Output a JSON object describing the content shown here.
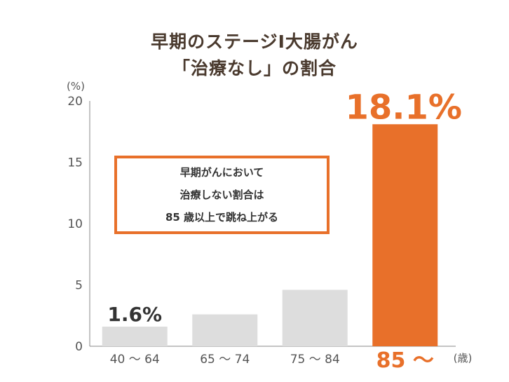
{
  "title_line1": "早期のステージⅠ大腸がん",
  "title_line2": "「治療なし」の割合",
  "callout_lines": [
    "早期がんにおいて",
    "治療しない割合は",
    "85 歳以上で跳ね上がる"
  ],
  "colors": {
    "accent": "#e8702a",
    "bar": "#dddddd",
    "title": "#4a3a2e"
  },
  "chart_data": {
    "type": "bar",
    "title": "早期のステージⅠ大腸がん「治療なし」の割合",
    "categories": [
      "40 〜 64",
      "65 〜 74",
      "75 〜 84",
      "85 〜"
    ],
    "values": [
      1.6,
      2.6,
      4.6,
      18.1
    ],
    "data_labels": [
      "1.6%",
      "",
      "",
      "18.1%"
    ],
    "highlight_index": 3,
    "ylim": [
      0,
      20
    ],
    "yticks": [
      0,
      5,
      10,
      15,
      20
    ],
    "ylabel": "(%)",
    "xlabel": "(歳)",
    "grid": false
  }
}
